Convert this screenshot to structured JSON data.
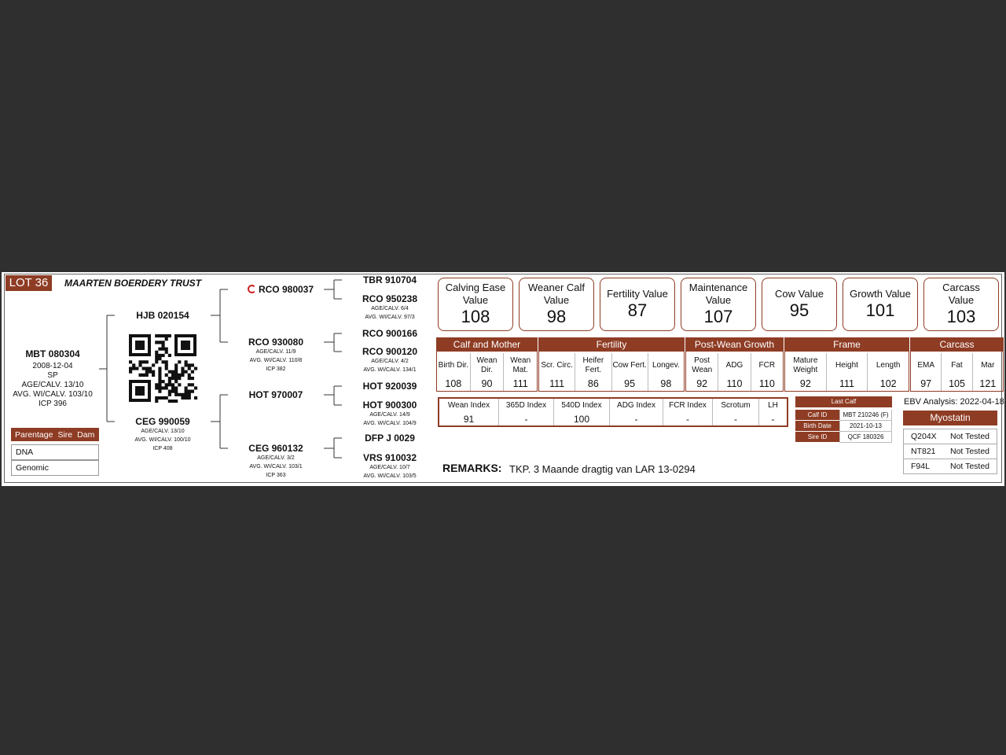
{
  "header": {
    "lot": "LOT 36",
    "owner": "MAARTEN BOERDERY TRUST"
  },
  "animal": {
    "id": "MBT 080304",
    "lines": [
      "2008-12-04",
      "SP",
      "AGE/CALV. 13/10",
      "AVG. WI/CALV. 103/10",
      "ICP 396"
    ]
  },
  "parentage": {
    "columns": [
      "Parentage",
      "Sire",
      "Dam"
    ],
    "rows": [
      "DNA",
      "Genomic"
    ]
  },
  "pedigree": {
    "nodes": [
      {
        "id": "HJB 020154",
        "details": []
      },
      {
        "id": "CEG 990059",
        "details": [
          "AGE/CALV. 13/10",
          "AVG. WI/CALV. 100/10",
          "ICP 408"
        ]
      },
      {
        "id": "RCO 980037",
        "details": []
      },
      {
        "id": "RCO 930080",
        "details": [
          "AGE/CALV. 11/9",
          "AVG. WI/CALV. 110/8",
          "ICP 382"
        ]
      },
      {
        "id": "HOT 970007",
        "details": []
      },
      {
        "id": "CEG 960132",
        "details": [
          "AGE/CALV. 3/2",
          "AVG. WI/CALV. 103/1",
          "ICP 363"
        ]
      },
      {
        "id": "TBR 910704",
        "details": []
      },
      {
        "id": "RCO 950238",
        "details": [
          "AGE/CALV. 6/4",
          "AVG. WI/CALV. 97/3"
        ]
      },
      {
        "id": "RCO 900166",
        "details": []
      },
      {
        "id": "RCO 900120",
        "details": [
          "AGE/CALV. 4/2",
          "AVG. WI/CALV. 134/1"
        ]
      },
      {
        "id": "HOT 920039",
        "details": []
      },
      {
        "id": "HOT 900300",
        "details": [
          "AGE/CALV. 14/9",
          "AVG. WI/CALV. 104/9"
        ]
      },
      {
        "id": "DFP J 0029",
        "details": []
      },
      {
        "id": "VRS 910032",
        "details": [
          "AGE/CALV. 10/7",
          "AVG. WI/CALV. 103/5"
        ]
      }
    ]
  },
  "values": [
    {
      "label": "Calving Ease Value",
      "value": 108
    },
    {
      "label": "Weaner Calf Value",
      "value": 98
    },
    {
      "label": "Fertility Value",
      "value": 87
    },
    {
      "label": "Maintenance Value",
      "value": 107
    },
    {
      "label": "Cow Value",
      "value": 95
    },
    {
      "label": "Growth Value",
      "value": 101
    },
    {
      "label": "Carcass Value",
      "value": 103
    }
  ],
  "ebv": {
    "groups": [
      {
        "name": "Calf and Mother",
        "traits": [
          {
            "label": "Birth Dir.",
            "value": 108
          },
          {
            "label": "Wean Dir.",
            "value": 90
          },
          {
            "label": "Wean Mat.",
            "value": 111
          }
        ]
      },
      {
        "name": "Fertility",
        "traits": [
          {
            "label": "Scr. Circ.",
            "value": 111
          },
          {
            "label": "Heifer Fert.",
            "value": 86
          },
          {
            "label": "Cow Fert.",
            "value": 95
          },
          {
            "label": "Longev.",
            "value": 98
          }
        ]
      },
      {
        "name": "Post-Wean Growth",
        "traits": [
          {
            "label": "Post Wean",
            "value": 92
          },
          {
            "label": "ADG",
            "value": 110
          },
          {
            "label": "FCR",
            "value": 110
          }
        ]
      },
      {
        "name": "Frame",
        "traits": [
          {
            "label": "Mature Weight",
            "value": 92
          },
          {
            "label": "Height",
            "value": 111
          },
          {
            "label": "Length",
            "value": 102
          }
        ]
      },
      {
        "name": "Carcass",
        "traits": [
          {
            "label": "EMA",
            "value": 97
          },
          {
            "label": "Fat",
            "value": 105
          },
          {
            "label": "Mar",
            "value": 121
          }
        ]
      }
    ]
  },
  "indexes": [
    {
      "label": "Wean Index",
      "value": 91
    },
    {
      "label": "365D Index",
      "value": "-"
    },
    {
      "label": "540D Index",
      "value": 100
    },
    {
      "label": "ADG Index",
      "value": "-"
    },
    {
      "label": "FCR Index",
      "value": "-"
    },
    {
      "label": "Scrotum",
      "value": "-"
    },
    {
      "label": "LH",
      "value": "-"
    }
  ],
  "last_calf": {
    "title": "Last Calf",
    "rows": [
      [
        "Calf ID",
        "MBT 210246 (F)"
      ],
      [
        "Birth Date",
        "2021-10-13"
      ],
      [
        "Sire ID",
        "QCF 180326"
      ]
    ]
  },
  "ebv_analysis": "EBV Analysis: 2022-04-18",
  "myostatin": {
    "title": "Myostatin",
    "rows": [
      [
        "Q204X",
        "Not Tested"
      ],
      [
        "NT821",
        "Not Tested"
      ],
      [
        "F94L",
        "Not Tested"
      ]
    ]
  },
  "remarks": {
    "label": "REMARKS:",
    "text": "TKP. 3 Maande dragtig van LAR 13-0294"
  }
}
